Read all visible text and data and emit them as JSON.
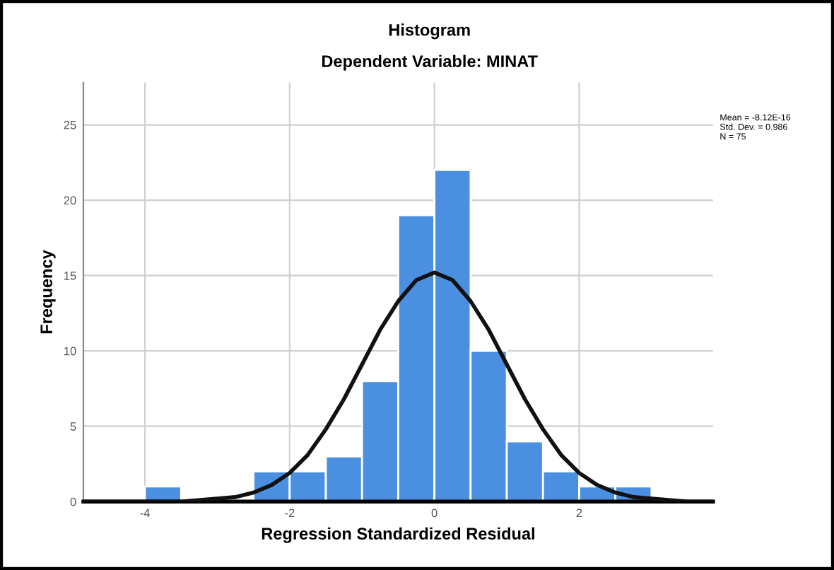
{
  "chart_data": {
    "type": "histogram",
    "title": "Histogram",
    "subtitle": "Dependent Variable: MINAT",
    "xlabel": "Regression Standardized Residual",
    "ylabel": "Frequency",
    "bins": [
      -4,
      -3.5,
      -3,
      -2.5,
      -2,
      -1.5,
      -1,
      -0.5,
      0,
      0.5,
      1,
      1.5,
      2,
      2.5,
      3
    ],
    "values": [
      1,
      0,
      0,
      2,
      2,
      3,
      8,
      19,
      22,
      10,
      4,
      2,
      1,
      1
    ],
    "color": "#4a8fe0",
    "series": [
      {
        "type": "line",
        "color": "#111111",
        "x": [
          -4.85,
          -4,
          -3.5,
          -3,
          -2.75,
          -2.5,
          -2.25,
          -2,
          -1.75,
          -1.5,
          -1.25,
          -1,
          -0.75,
          -0.5,
          -0.25,
          0,
          0.25,
          0.5,
          0.75,
          1,
          1.25,
          1.5,
          1.75,
          2,
          2.25,
          2.5,
          2.75,
          3,
          3.5,
          3.85
        ],
        "values": [
          0,
          0,
          0,
          0.2,
          0.3,
          0.6,
          1.1,
          1.9,
          3.1,
          4.8,
          6.8,
          9.1,
          11.4,
          13.3,
          14.7,
          15.2,
          14.7,
          13.3,
          11.4,
          9.1,
          6.8,
          4.8,
          3.1,
          1.9,
          1.1,
          0.6,
          0.3,
          0.2,
          0,
          0
        ]
      }
    ],
    "xlim": [
      -4.85,
      3.85
    ],
    "xticks": [
      -4,
      -2,
      0,
      2
    ],
    "ylim": [
      0,
      27.8
    ],
    "yticks": [
      0,
      5,
      10,
      15,
      20,
      25
    ],
    "grid": true,
    "legend": false,
    "annotations": [
      "Mean = -8.12E-16\nStd. Dev. = 0.986\nN = 75"
    ]
  }
}
